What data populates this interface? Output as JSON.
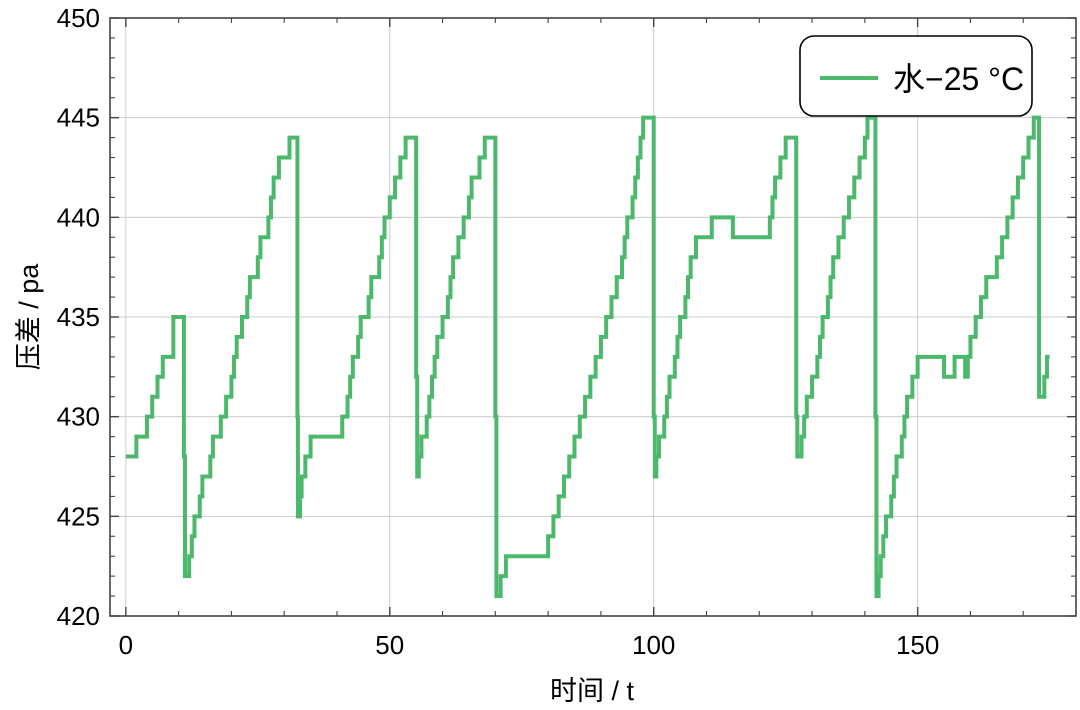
{
  "chart_data": {
    "type": "line",
    "xlabel": "时间 / t",
    "ylabel": "压差 / pa",
    "xlim": [
      -3,
      180
    ],
    "ylim": [
      420,
      450
    ],
    "x_ticks": [
      0,
      50,
      100,
      150
    ],
    "y_ticks": [
      420,
      425,
      430,
      435,
      440,
      445,
      450
    ],
    "grid": true,
    "legend_position": "top-right",
    "step": "post",
    "series": [
      {
        "name": "水−25 °C",
        "color": "#4cb86c",
        "points": [
          [
            0,
            428
          ],
          [
            2,
            429
          ],
          [
            4,
            430
          ],
          [
            5,
            431
          ],
          [
            6,
            432
          ],
          [
            7,
            433
          ],
          [
            9,
            435
          ],
          [
            11,
            428
          ],
          [
            11.2,
            422
          ],
          [
            12,
            423
          ],
          [
            12.5,
            424
          ],
          [
            13,
            425
          ],
          [
            14,
            426
          ],
          [
            14.5,
            427
          ],
          [
            16,
            428
          ],
          [
            16.5,
            429
          ],
          [
            18,
            430
          ],
          [
            19,
            431
          ],
          [
            20,
            432
          ],
          [
            20.5,
            433
          ],
          [
            21,
            434
          ],
          [
            22,
            435
          ],
          [
            23,
            436
          ],
          [
            23.5,
            437
          ],
          [
            25,
            438
          ],
          [
            25.5,
            439
          ],
          [
            27,
            440
          ],
          [
            27.5,
            441
          ],
          [
            28,
            442
          ],
          [
            29,
            443
          ],
          [
            31,
            444
          ],
          [
            32.5,
            430
          ],
          [
            32.6,
            425
          ],
          [
            33,
            426
          ],
          [
            33.3,
            427
          ],
          [
            34,
            428
          ],
          [
            35,
            429
          ],
          [
            41,
            430
          ],
          [
            42,
            431
          ],
          [
            42.5,
            432
          ],
          [
            43,
            433
          ],
          [
            44,
            434
          ],
          [
            44.5,
            435
          ],
          [
            46,
            436
          ],
          [
            46.5,
            437
          ],
          [
            48,
            438
          ],
          [
            48.5,
            439
          ],
          [
            49,
            440
          ],
          [
            50,
            441
          ],
          [
            51,
            442
          ],
          [
            52,
            443
          ],
          [
            53,
            444
          ],
          [
            55,
            432
          ],
          [
            55.2,
            427
          ],
          [
            55.5,
            428
          ],
          [
            56,
            429
          ],
          [
            57,
            430
          ],
          [
            57.5,
            431
          ],
          [
            58,
            432
          ],
          [
            58.5,
            433
          ],
          [
            59,
            434
          ],
          [
            60,
            435
          ],
          [
            61,
            436
          ],
          [
            61.5,
            437
          ],
          [
            62,
            438
          ],
          [
            63,
            439
          ],
          [
            64,
            440
          ],
          [
            65,
            441
          ],
          [
            65.5,
            442
          ],
          [
            67,
            443
          ],
          [
            68,
            444
          ],
          [
            70,
            430
          ],
          [
            70.2,
            421
          ],
          [
            71,
            422
          ],
          [
            72,
            423
          ],
          [
            80,
            424
          ],
          [
            81,
            425
          ],
          [
            82,
            426
          ],
          [
            83,
            427
          ],
          [
            84,
            428
          ],
          [
            85,
            429
          ],
          [
            86,
            430
          ],
          [
            87,
            431
          ],
          [
            88,
            432
          ],
          [
            89,
            433
          ],
          [
            90,
            434
          ],
          [
            91,
            435
          ],
          [
            92,
            436
          ],
          [
            93,
            437
          ],
          [
            94,
            438
          ],
          [
            94.5,
            439
          ],
          [
            95,
            440
          ],
          [
            96,
            441
          ],
          [
            96.5,
            442
          ],
          [
            97,
            443
          ],
          [
            97.5,
            444
          ],
          [
            98,
            445
          ],
          [
            100,
            430
          ],
          [
            100.2,
            427
          ],
          [
            100.5,
            428
          ],
          [
            101,
            429
          ],
          [
            102,
            430
          ],
          [
            102.5,
            431
          ],
          [
            103,
            432
          ],
          [
            104,
            433
          ],
          [
            104.5,
            434
          ],
          [
            105,
            435
          ],
          [
            106,
            436
          ],
          [
            106.5,
            437
          ],
          [
            107,
            438
          ],
          [
            108,
            439
          ],
          [
            111,
            440
          ],
          [
            115,
            439
          ],
          [
            122,
            440
          ],
          [
            122.5,
            441
          ],
          [
            123,
            442
          ],
          [
            124,
            443
          ],
          [
            125,
            444
          ],
          [
            127,
            430
          ],
          [
            127.2,
            428
          ],
          [
            128,
            429
          ],
          [
            128.5,
            430
          ],
          [
            129,
            431
          ],
          [
            130,
            432
          ],
          [
            131,
            433
          ],
          [
            131.5,
            434
          ],
          [
            132,
            435
          ],
          [
            133,
            436
          ],
          [
            133.5,
            437
          ],
          [
            134,
            438
          ],
          [
            135,
            439
          ],
          [
            136,
            440
          ],
          [
            137,
            441
          ],
          [
            138,
            442
          ],
          [
            139,
            443
          ],
          [
            140,
            444
          ],
          [
            140.5,
            445
          ],
          [
            142,
            430
          ],
          [
            142.2,
            421
          ],
          [
            142.6,
            422
          ],
          [
            143,
            423
          ],
          [
            143.5,
            424
          ],
          [
            144,
            425
          ],
          [
            145,
            426
          ],
          [
            145.5,
            427
          ],
          [
            146,
            428
          ],
          [
            147,
            429
          ],
          [
            147.5,
            430
          ],
          [
            148,
            431
          ],
          [
            149,
            432
          ],
          [
            150,
            433
          ],
          [
            155,
            432
          ],
          [
            157,
            433
          ],
          [
            159,
            432
          ],
          [
            159.5,
            433
          ],
          [
            160,
            434
          ],
          [
            161,
            435
          ],
          [
            162,
            436
          ],
          [
            163,
            437
          ],
          [
            165,
            438
          ],
          [
            166,
            439
          ],
          [
            167,
            440
          ],
          [
            168,
            441
          ],
          [
            169,
            442
          ],
          [
            170,
            443
          ],
          [
            171,
            444
          ],
          [
            172,
            445
          ],
          [
            173,
            431
          ],
          [
            174,
            432
          ],
          [
            174.5,
            433
          ],
          [
            175,
            433
          ]
        ]
      }
    ]
  }
}
